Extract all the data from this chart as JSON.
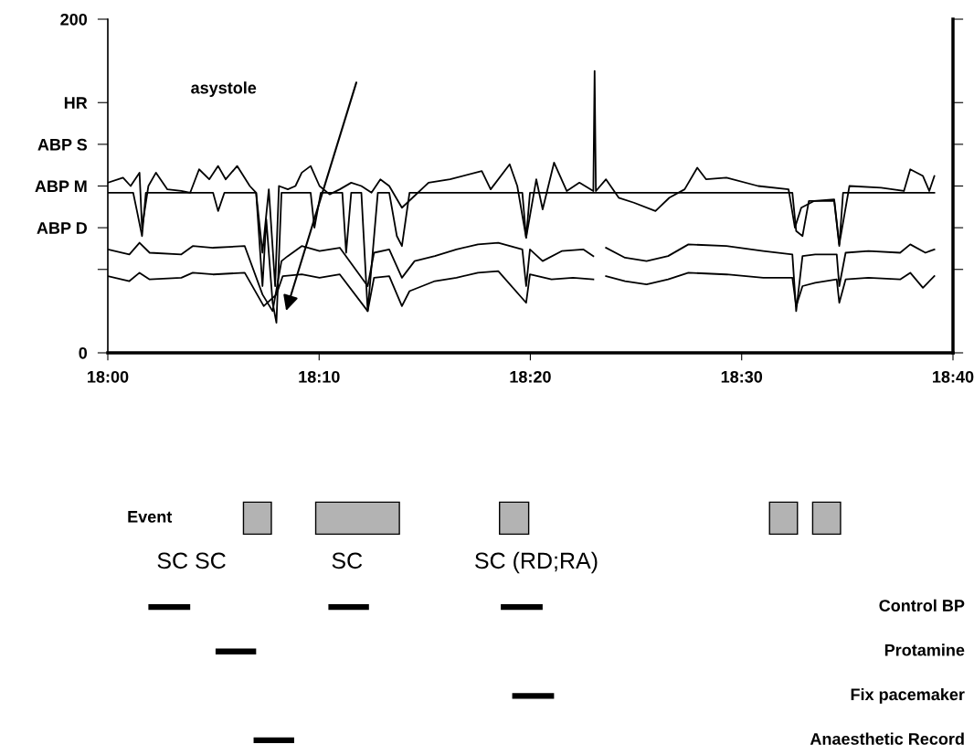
{
  "chart_data": [
    {
      "type": "line",
      "xlim": [
        18,
        18.6667
      ],
      "xticks": [
        {
          "value": 18,
          "label": "18:00"
        },
        {
          "value": 18.1667,
          "label": "18:10"
        },
        {
          "value": 18.3333,
          "label": "18:20"
        },
        {
          "value": 18.5,
          "label": "18:30"
        },
        {
          "value": 18.6667,
          "label": "18:40"
        }
      ],
      "ylim": [
        0,
        200
      ],
      "yticks": [
        0,
        {
          "value": 50,
          "label": null
        },
        {
          "value": 75,
          "label": "ABP D"
        },
        {
          "value": 100,
          "label": "ABP M"
        },
        {
          "value": 125,
          "label": "ABP S"
        },
        {
          "value": 150,
          "label": "HR"
        },
        200
      ],
      "grid": false,
      "marker": "none",
      "line_style": "solid",
      "annotations": [
        "asystole"
      ],
      "series": [
        {
          "color": "#000000",
          "x": [
            18.0,
            18.02,
            18.023,
            18.027,
            18.03,
            18.083,
            18.087,
            18.092,
            18.117,
            18.122,
            18.125,
            18.13,
            18.133,
            18.137,
            18.16,
            18.163,
            18.168,
            18.185,
            18.188,
            18.192,
            18.2,
            18.205,
            18.213,
            18.222,
            18.228,
            18.232,
            18.235,
            18.238,
            18.327,
            18.33,
            18.333,
            18.54,
            18.543,
            18.548,
            18.553,
            18.573,
            18.577,
            18.58,
            18.652
          ],
          "values": [
            96,
            96,
            85,
            70,
            96,
            96,
            85,
            96,
            96,
            40,
            80,
            30,
            18,
            96,
            96,
            75,
            96,
            96,
            60,
            96,
            96,
            25,
            96,
            96,
            70,
            64,
            80,
            96,
            96,
            69,
            96,
            96,
            73,
            70,
            91,
            91,
            64,
            96,
            96
          ]
        },
        {
          "color": "#000000",
          "x": [
            18.0,
            18.012,
            18.018,
            18.025,
            18.027,
            18.032,
            18.038,
            18.047,
            18.058,
            18.065,
            18.067,
            18.072,
            18.08,
            18.087,
            18.093,
            18.102,
            18.112,
            18.117,
            18.122,
            18.127,
            18.132,
            18.135,
            18.142,
            18.148,
            18.153,
            18.16,
            18.167,
            18.175,
            18.183,
            18.192,
            18.2,
            18.208,
            18.215,
            18.222,
            18.232,
            18.253,
            18.27,
            18.295,
            18.302,
            18.317,
            18.323,
            18.33,
            18.338,
            18.343,
            18.352,
            18.362,
            18.372,
            18.383,
            18.384,
            18.385,
            18.393,
            18.403,
            18.415,
            18.432,
            18.443,
            18.455,
            18.465,
            18.472,
            18.488,
            18.513,
            18.537,
            18.542,
            18.547,
            18.557,
            18.573,
            18.577,
            18.585,
            18.61,
            18.628,
            18.633,
            18.643,
            18.648,
            18.652
          ],
          "values": [
            102,
            105,
            100,
            108,
            75,
            100,
            108,
            98,
            97,
            96,
            100,
            110,
            104,
            112,
            104,
            112,
            100,
            96,
            60,
            98,
            40,
            100,
            98,
            100,
            108,
            112,
            100,
            95,
            98,
            102,
            100,
            96,
            104,
            100,
            87,
            102,
            104,
            109,
            98,
            113,
            100,
            69,
            104,
            86,
            114,
            97,
            102,
            97,
            169,
            97,
            104,
            93,
            90,
            85,
            93,
            98,
            111,
            104,
            105,
            100,
            98,
            75,
            87,
            91,
            92,
            65,
            100,
            99,
            97,
            110,
            106,
            97,
            106
          ]
        },
        {
          "color": "#000000",
          "x": [
            18.0,
            18.017,
            18.025,
            18.033,
            18.058,
            18.067,
            18.083,
            18.108,
            18.122,
            18.13,
            18.137,
            18.142,
            18.153,
            18.167,
            18.183,
            18.205,
            18.21,
            18.222,
            18.232,
            18.242,
            18.258,
            18.275,
            18.292,
            18.308,
            18.327,
            18.33,
            18.333,
            18.343,
            18.358,
            18.375,
            18.383,
            18.388,
            18.393,
            18.408,
            18.425,
            18.442,
            18.458,
            18.488,
            18.517,
            18.54,
            18.543,
            18.548,
            18.558,
            18.575,
            18.577,
            18.582,
            18.6,
            18.625,
            18.633,
            18.645,
            18.652
          ],
          "values": [
            62,
            59,
            66,
            60,
            59,
            64,
            63,
            64,
            35,
            25,
            55,
            58,
            64,
            61,
            63,
            40,
            60,
            62,
            45,
            55,
            58,
            62,
            65,
            66,
            62,
            40,
            62,
            55,
            61,
            62,
            58,
            null,
            63,
            57,
            55,
            58,
            65,
            64,
            61,
            59,
            25,
            58,
            59,
            59,
            40,
            60,
            61,
            60,
            65,
            60,
            62
          ]
        },
        {
          "color": "#000000",
          "x": [
            18.0,
            18.017,
            18.025,
            18.033,
            18.058,
            18.067,
            18.083,
            18.108,
            18.123,
            18.133,
            18.138,
            18.153,
            18.167,
            18.183,
            18.205,
            18.21,
            18.222,
            18.232,
            18.238,
            18.258,
            18.275,
            18.292,
            18.308,
            18.33,
            18.333,
            18.35,
            18.367,
            18.383,
            18.388,
            18.393,
            18.408,
            18.425,
            18.442,
            18.458,
            18.488,
            18.517,
            18.54,
            18.543,
            18.548,
            18.558,
            18.575,
            18.577,
            18.582,
            18.6,
            18.625,
            18.633,
            18.643,
            18.652
          ],
          "values": [
            46,
            43,
            48,
            44,
            45,
            48,
            47,
            48,
            28,
            35,
            46,
            47,
            45,
            47,
            25,
            45,
            46,
            28,
            37,
            43,
            45,
            48,
            49,
            30,
            47,
            44,
            45,
            44,
            null,
            46,
            43,
            41,
            44,
            48,
            47,
            45,
            45,
            28,
            40,
            42,
            44,
            30,
            44,
            45,
            44,
            48,
            39,
            46
          ]
        }
      ]
    },
    {
      "type": "bar",
      "orientation": "horizontal",
      "xlim": [
        18,
        18.6667
      ],
      "categories": [
        "Event",
        null,
        "Control BP",
        "Protamine",
        "Fix pacemaker",
        "Anaesthetic Record"
      ],
      "annotations": [
        "SC SC",
        "SC",
        "SC (RD;RA)"
      ],
      "series": [
        {
          "color": "#b3b3b3",
          "base": [
            18.107,
            null,
            null,
            null,
            null,
            null
          ],
          "values": [
            0.022,
            null,
            null,
            null,
            null,
            null
          ]
        },
        {
          "color": "#b3b3b3",
          "base": [
            18.164,
            null,
            null,
            null,
            null,
            null
          ],
          "values": [
            0.066,
            null,
            null,
            null,
            null,
            null
          ]
        },
        {
          "color": "#b3b3b3",
          "base": [
            18.309,
            null,
            null,
            null,
            null,
            null
          ],
          "values": [
            0.023,
            null,
            null,
            null,
            null,
            null
          ]
        },
        {
          "color": "#b3b3b3",
          "base": [
            18.522,
            null,
            null,
            null,
            null,
            null
          ],
          "values": [
            0.022,
            null,
            null,
            null,
            null,
            null
          ]
        },
        {
          "color": "#b3b3b3",
          "base": [
            18.556,
            null,
            null,
            null,
            null,
            null
          ],
          "values": [
            0.022,
            null,
            null,
            null,
            null,
            null
          ]
        },
        {
          "color": "#000000",
          "base": [
            null,
            null,
            18.032,
            null,
            null,
            null
          ],
          "values": [
            null,
            null,
            0.033,
            null,
            null,
            null
          ]
        },
        {
          "color": "#000000",
          "base": [
            null,
            null,
            18.174,
            null,
            null,
            null
          ],
          "values": [
            null,
            null,
            0.032,
            null,
            null,
            null
          ]
        },
        {
          "color": "#000000",
          "base": [
            null,
            null,
            18.31,
            null,
            null,
            null
          ],
          "values": [
            null,
            null,
            0.033,
            null,
            null,
            null
          ]
        },
        {
          "color": "#000000",
          "base": [
            null,
            null,
            null,
            18.085,
            null,
            null
          ],
          "values": [
            null,
            null,
            null,
            0.032,
            null,
            null
          ]
        },
        {
          "color": "#000000",
          "base": [
            null,
            null,
            null,
            null,
            18.319,
            null
          ],
          "values": [
            null,
            null,
            null,
            null,
            0.033,
            null
          ]
        },
        {
          "color": "#000000",
          "base": [
            null,
            null,
            null,
            null,
            null,
            18.115
          ],
          "values": [
            null,
            null,
            null,
            null,
            null,
            0.032
          ]
        }
      ]
    }
  ]
}
